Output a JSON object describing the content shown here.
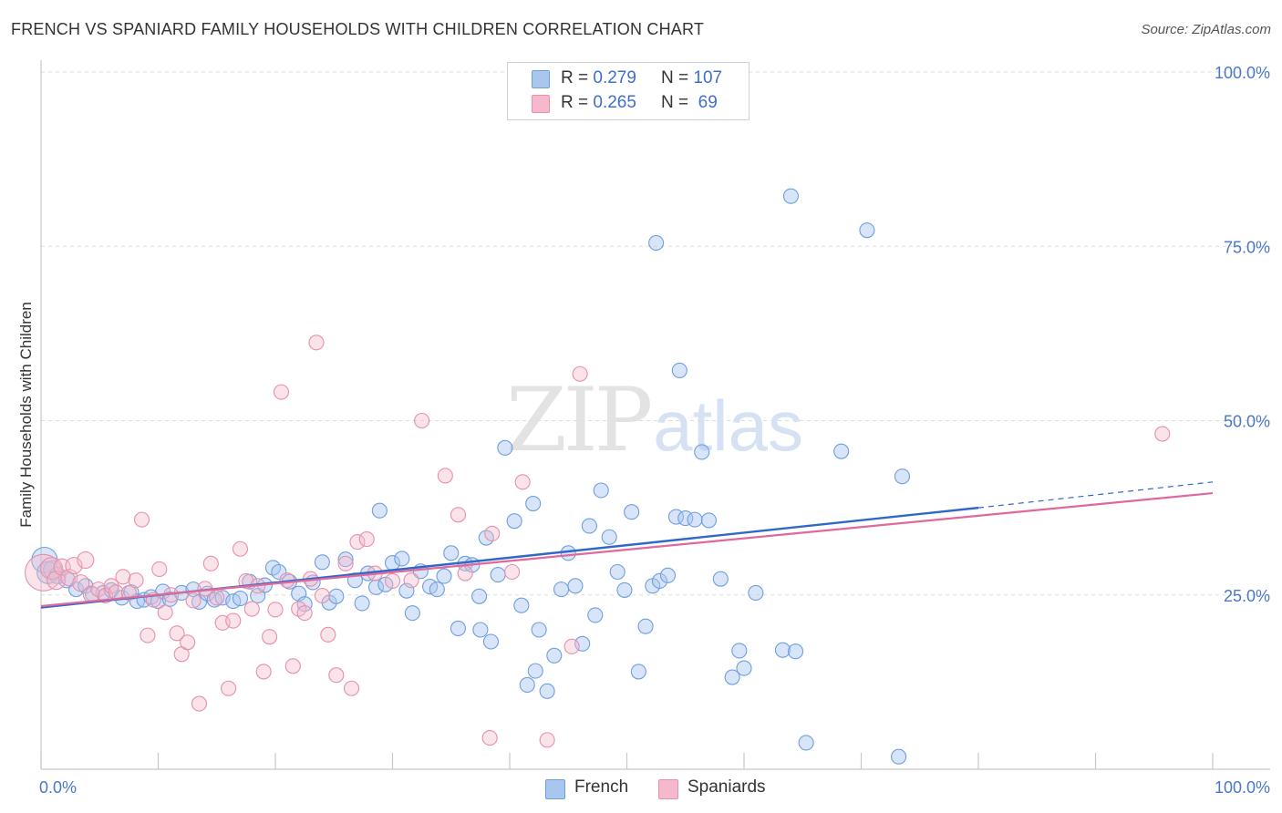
{
  "title": "FRENCH VS SPANIARD FAMILY HOUSEHOLDS WITH CHILDREN CORRELATION CHART",
  "source": "Source: ZipAtlas.com",
  "watermark": {
    "zip": "ZIP",
    "atlas": "atlas"
  },
  "legend": {
    "french": {
      "r_label": "R = ",
      "r_value": "0.279",
      "n_label": "N = ",
      "n_value": "107",
      "color": "#a9c6ef"
    },
    "spaniards": {
      "r_label": "R = ",
      "r_value": "0.265",
      "n_label": "N = ",
      "n_value": " 69",
      "color": "#f6b8cb"
    }
  },
  "bottom_legend": [
    "French",
    "Spaniards"
  ],
  "colors": {
    "french_fill": "rgba(169,198,239,0.45)",
    "french_stroke": "#6f9ede",
    "french_line": "#3068c9",
    "spaniards_fill": "rgba(246,184,203,0.40)",
    "spaniards_stroke": "#e690aa",
    "spaniards_line": "#e0689a",
    "tick_text": "#4a77c8",
    "grid": "#dddddd"
  },
  "chart_data": {
    "type": "scatter",
    "title": "FRENCH VS SPANIARD FAMILY HOUSEHOLDS WITH CHILDREN CORRELATION CHART",
    "xlabel": "",
    "ylabel": "Family Households with Children",
    "xlim": [
      0,
      100
    ],
    "ylim": [
      0,
      100
    ],
    "x_tick_labels": [
      "0.0%",
      "100.0%"
    ],
    "y_ticks": [
      25,
      50,
      75,
      100
    ],
    "y_tick_labels": [
      "25.0%",
      "50.0%",
      "75.0%",
      "100.0%"
    ],
    "grid": "horizontal dashed",
    "legend_position": "top-center",
    "series": [
      {
        "name": "French",
        "R": 0.279,
        "N": 107,
        "trend": {
          "x": [
            0,
            80,
            100
          ],
          "y": [
            23.2,
            37.5,
            41.2
          ],
          "dashed_from_x": 80
        },
        "points": [
          [
            0.3,
            30.0,
            14
          ],
          [
            0.6,
            28.2,
            12
          ],
          [
            1.0,
            28.6,
            10
          ],
          [
            1.4,
            27.8,
            9
          ],
          [
            2.2,
            27.2,
            9
          ],
          [
            3.0,
            25.8,
            8
          ],
          [
            3.8,
            26.3,
            8
          ],
          [
            4.4,
            25.1,
            8
          ],
          [
            5.3,
            25.3,
            8
          ],
          [
            6.0,
            25.7,
            8
          ],
          [
            6.9,
            24.6,
            8
          ],
          [
            7.7,
            25.4,
            8
          ],
          [
            8.2,
            24.1,
            8
          ],
          [
            8.8,
            24.3,
            8
          ],
          [
            9.4,
            24.7,
            8
          ],
          [
            10.0,
            24.1,
            8
          ],
          [
            10.4,
            25.5,
            8
          ],
          [
            11.0,
            24.4,
            8
          ],
          [
            12.0,
            25.3,
            8
          ],
          [
            13.0,
            25.8,
            8
          ],
          [
            13.5,
            24.0,
            8
          ],
          [
            14.2,
            25.2,
            8
          ],
          [
            14.8,
            24.3,
            8
          ],
          [
            15.5,
            24.6,
            8
          ],
          [
            16.4,
            24.1,
            8
          ],
          [
            17.0,
            24.5,
            8
          ],
          [
            17.8,
            26.9,
            8
          ],
          [
            18.5,
            24.9,
            8
          ],
          [
            19.1,
            26.4,
            8
          ],
          [
            19.8,
            28.9,
            8
          ],
          [
            20.3,
            28.3,
            8
          ],
          [
            21.2,
            26.9,
            8
          ],
          [
            22.0,
            25.2,
            8
          ],
          [
            22.5,
            23.7,
            8
          ],
          [
            23.2,
            26.8,
            8
          ],
          [
            24.0,
            29.7,
            8
          ],
          [
            24.6,
            23.9,
            8
          ],
          [
            25.2,
            24.8,
            8
          ],
          [
            26.0,
            30.1,
            8
          ],
          [
            26.8,
            27.1,
            8
          ],
          [
            27.4,
            23.8,
            8
          ],
          [
            27.9,
            28.1,
            8
          ],
          [
            28.6,
            26.1,
            8
          ],
          [
            29.4,
            26.5,
            8
          ],
          [
            30.0,
            29.6,
            8
          ],
          [
            30.8,
            30.2,
            8
          ],
          [
            31.2,
            25.6,
            8
          ],
          [
            31.7,
            22.4,
            8
          ],
          [
            32.4,
            28.4,
            8
          ],
          [
            33.2,
            26.2,
            8
          ],
          [
            33.8,
            25.8,
            8
          ],
          [
            34.4,
            27.7,
            8
          ],
          [
            35.0,
            31.0,
            8
          ],
          [
            35.6,
            20.2,
            8
          ],
          [
            36.2,
            29.5,
            8
          ],
          [
            36.8,
            29.3,
            8
          ],
          [
            37.4,
            24.8,
            8
          ],
          [
            38.0,
            33.2,
            8
          ],
          [
            38.4,
            18.3,
            8
          ],
          [
            39.0,
            27.9,
            8
          ],
          [
            39.6,
            46.1,
            8
          ],
          [
            40.4,
            35.6,
            8
          ],
          [
            41.0,
            23.5,
            8
          ],
          [
            41.5,
            12.1,
            8
          ],
          [
            42.0,
            38.1,
            8
          ],
          [
            42.5,
            20.0,
            8
          ],
          [
            43.2,
            11.2,
            8
          ],
          [
            43.8,
            16.3,
            8
          ],
          [
            44.4,
            25.8,
            8
          ],
          [
            45.0,
            31.0,
            8
          ],
          [
            45.6,
            26.3,
            8
          ],
          [
            46.2,
            18.0,
            8
          ],
          [
            46.8,
            34.9,
            8
          ],
          [
            47.3,
            22.1,
            8
          ],
          [
            47.8,
            40.0,
            8
          ],
          [
            48.5,
            33.3,
            8
          ],
          [
            49.2,
            28.3,
            8
          ],
          [
            49.8,
            25.7,
            8
          ],
          [
            50.4,
            36.9,
            8
          ],
          [
            51.0,
            14.0,
            8
          ],
          [
            51.6,
            20.5,
            8
          ],
          [
            52.2,
            26.3,
            8
          ],
          [
            52.8,
            27.0,
            8
          ],
          [
            53.5,
            27.8,
            8
          ],
          [
            54.2,
            36.2,
            8
          ],
          [
            55.0,
            36.0,
            8
          ],
          [
            55.8,
            35.8,
            8
          ],
          [
            56.4,
            45.5,
            8
          ],
          [
            57.0,
            35.7,
            8
          ],
          [
            58.0,
            27.3,
            8
          ],
          [
            59.0,
            13.2,
            8
          ],
          [
            59.6,
            17.0,
            8
          ],
          [
            61.0,
            25.3,
            8
          ],
          [
            63.3,
            17.1,
            8
          ],
          [
            65.3,
            3.8,
            8
          ],
          [
            52.5,
            75.5,
            8
          ],
          [
            54.5,
            57.2,
            8
          ],
          [
            60.0,
            14.5,
            8
          ],
          [
            64.0,
            82.2,
            8
          ],
          [
            64.4,
            16.9,
            8
          ],
          [
            68.3,
            45.6,
            8
          ],
          [
            70.5,
            77.3,
            8
          ],
          [
            73.5,
            42.0,
            8
          ],
          [
            73.2,
            1.8,
            8
          ],
          [
            42.2,
            14.1,
            8
          ],
          [
            37.5,
            20.0,
            8
          ],
          [
            28.9,
            37.1,
            8
          ]
        ]
      },
      {
        "name": "Spaniards",
        "R": 0.265,
        "N": 69,
        "trend": {
          "x": [
            0,
            100
          ],
          "y": [
            23.4,
            39.6
          ]
        },
        "points": [
          [
            0.2,
            28.2,
            20
          ],
          [
            0.9,
            28.8,
            12
          ],
          [
            1.3,
            27.1,
            10
          ],
          [
            1.8,
            29.0,
            9
          ],
          [
            2.4,
            27.5,
            9
          ],
          [
            2.8,
            29.2,
            9
          ],
          [
            3.4,
            26.7,
            9
          ],
          [
            3.8,
            30.0,
            9
          ],
          [
            4.3,
            25.1,
            9
          ],
          [
            4.9,
            25.8,
            8
          ],
          [
            5.5,
            24.9,
            8
          ],
          [
            6.0,
            26.3,
            8
          ],
          [
            6.4,
            25.4,
            8
          ],
          [
            7.0,
            27.6,
            8
          ],
          [
            7.5,
            25.3,
            8
          ],
          [
            8.1,
            27.1,
            8
          ],
          [
            8.6,
            35.8,
            8
          ],
          [
            9.1,
            19.2,
            8
          ],
          [
            9.6,
            24.3,
            8
          ],
          [
            10.1,
            28.7,
            8
          ],
          [
            10.6,
            22.5,
            8
          ],
          [
            11.1,
            25.0,
            8
          ],
          [
            11.6,
            19.5,
            8
          ],
          [
            12.0,
            16.5,
            8
          ],
          [
            12.5,
            18.2,
            8
          ],
          [
            13.0,
            24.2,
            8
          ],
          [
            13.5,
            9.4,
            8
          ],
          [
            14.0,
            25.9,
            8
          ],
          [
            14.5,
            29.5,
            8
          ],
          [
            15.0,
            24.6,
            8
          ],
          [
            15.5,
            21.0,
            8
          ],
          [
            16.0,
            11.6,
            8
          ],
          [
            16.4,
            21.3,
            8
          ],
          [
            17.0,
            31.6,
            8
          ],
          [
            17.5,
            27.0,
            8
          ],
          [
            18.0,
            23.0,
            8
          ],
          [
            18.5,
            26.3,
            8
          ],
          [
            19.0,
            14.0,
            8
          ],
          [
            19.5,
            19.0,
            8
          ],
          [
            20.0,
            22.9,
            8
          ],
          [
            20.5,
            54.1,
            8
          ],
          [
            21.0,
            27.1,
            8
          ],
          [
            21.5,
            14.8,
            8
          ],
          [
            22.0,
            23.0,
            8
          ],
          [
            22.5,
            22.4,
            8
          ],
          [
            23.0,
            27.3,
            8
          ],
          [
            23.5,
            61.2,
            8
          ],
          [
            24.0,
            24.9,
            8
          ],
          [
            24.5,
            19.3,
            8
          ],
          [
            25.2,
            13.5,
            8
          ],
          [
            26.0,
            29.5,
            8
          ],
          [
            26.5,
            11.6,
            8
          ],
          [
            27.0,
            32.6,
            8
          ],
          [
            27.8,
            33.0,
            8
          ],
          [
            28.5,
            28.1,
            8
          ],
          [
            30.0,
            27.0,
            8
          ],
          [
            31.6,
            27.1,
            8
          ],
          [
            32.5,
            50.0,
            8
          ],
          [
            34.5,
            42.1,
            8
          ],
          [
            35.6,
            36.5,
            8
          ],
          [
            36.2,
            28.1,
            8
          ],
          [
            38.5,
            33.8,
            8
          ],
          [
            38.3,
            4.5,
            8
          ],
          [
            40.2,
            28.3,
            8
          ],
          [
            41.1,
            41.2,
            8
          ],
          [
            43.2,
            4.2,
            8
          ],
          [
            45.3,
            17.6,
            8
          ],
          [
            46.0,
            56.7,
            8
          ],
          [
            95.7,
            48.1,
            8
          ]
        ]
      }
    ]
  }
}
